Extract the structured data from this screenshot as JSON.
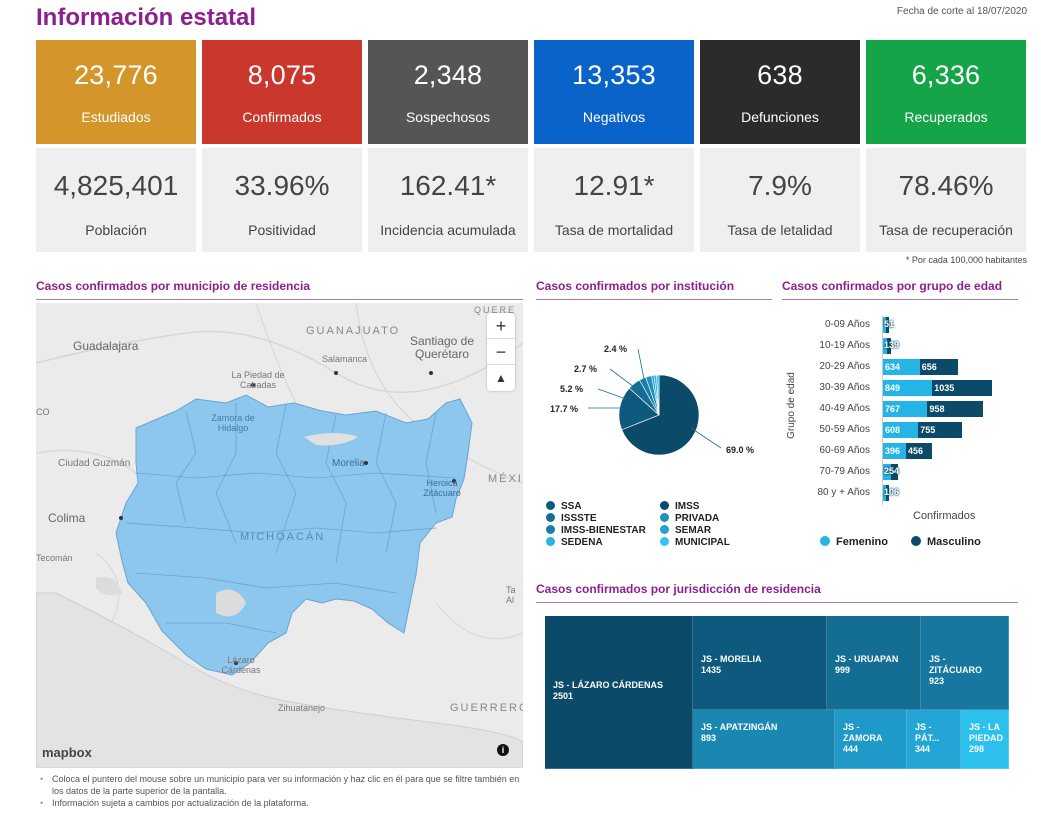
{
  "header": {
    "title": "Información estatal",
    "cutoff": "Fecha de corte al 18/07/2020"
  },
  "cards": [
    {
      "value": "23,776",
      "label": "Estudiados",
      "color": "#d4962a",
      "sub_value": "4,825,401",
      "sub_label": "Población"
    },
    {
      "value": "8,075",
      "label": "Confirmados",
      "color": "#c9372d",
      "sub_value": "33.96%",
      "sub_label": "Positividad"
    },
    {
      "value": "2,348",
      "label": "Sospechosos",
      "color": "#555555",
      "sub_value": "162.41*",
      "sub_label": "Incidencia acumulada"
    },
    {
      "value": "13,353",
      "label": "Negativos",
      "color": "#0a63c9",
      "sub_value": "12.91*",
      "sub_label": "Tasa de mortalidad"
    },
    {
      "value": "638",
      "label": "Defunciones",
      "color": "#2b2b2b",
      "sub_value": "7.9%",
      "sub_label": "Tasa de letalidad"
    },
    {
      "value": "6,336",
      "label": "Recuperados",
      "color": "#15a548",
      "sub_value": "78.46%",
      "sub_label": "Tasa de recuperación"
    }
  ],
  "footnote": "* Por cada 100,000 habitantes",
  "map_section": {
    "title": "Casos confirmados por municipio de residencia",
    "labels": {
      "guanajuato": "GUANAJUATO",
      "guadalajara": "Guadalajara",
      "salamanca": "Salamanca",
      "queretaro": "Santiago de Querétaro",
      "piedad": "La Piedad de Cabadas",
      "zamora": "Zamora de Hidalgo",
      "guzman": "Ciudad Guzmán",
      "morelia": "Morelia",
      "zitacuaro": "Heroica Zitácuaro",
      "colima": "Colima",
      "michoacan": "MICHOACÁN",
      "tecoman": "Tecomán",
      "lazaro": "Lázaro Cárdenas",
      "zihuatanejo": "Zihuatanejo",
      "guerrero": "GUERRERO",
      "mexico": "MÉXIC",
      "queretaro_state": "QUERE",
      "co": "CO",
      "ta": "Ta Al"
    },
    "zoom_in": "+",
    "zoom_out": "−",
    "compass": "▲",
    "mapbox": "mapbox",
    "info": "i"
  },
  "notes": [
    "Coloca el puntero del mouse sobre un municipio para ver su información y haz clic en él para que se filtre también en los datos de la parte superior de la pantalla.",
    "Información sujeta a cambios por actualización de la plataforma."
  ],
  "chart_data": [
    {
      "type": "pie",
      "title": "Casos confirmados por institución",
      "slices": [
        {
          "label": "IMSS",
          "value": 69.0,
          "color": "#0c4a6a"
        },
        {
          "label": "SSA",
          "value": 17.7,
          "color": "#0e5a7e"
        },
        {
          "label": "ISSSTE",
          "value": 5.2,
          "color": "#146d93"
        },
        {
          "label": "IMSS-BIENESTAR",
          "value": 2.7,
          "color": "#1a7fa8"
        },
        {
          "label": "PRIVADA",
          "value": 2.4,
          "color": "#1f91bc"
        },
        {
          "label": "SEMAR",
          "value": 1.0,
          "color": "#23a3d0"
        },
        {
          "label": "SEDENA",
          "value": 1.0,
          "color": "#29b2e0"
        },
        {
          "label": "MUNICIPAL",
          "value": 1.0,
          "color": "#31c3ef"
        }
      ],
      "shown_labels": [
        "69.0 %",
        "17.7 %",
        "5.2 %",
        "2.7 %",
        "2.4 %"
      ],
      "legend": [
        {
          "label": "SSA",
          "color": "#0e5a7e"
        },
        {
          "label": "IMSS",
          "color": "#0c4a6a"
        },
        {
          "label": "ISSSTE",
          "color": "#146d93"
        },
        {
          "label": "PRIVADA",
          "color": "#1f91bc"
        },
        {
          "label": "IMSS-BIENESTAR",
          "color": "#1a7fa8"
        },
        {
          "label": "SEMAR",
          "color": "#23a3d0"
        },
        {
          "label": "SEDENA",
          "color": "#29b2e0"
        },
        {
          "label": "MUNICIPAL",
          "color": "#31c3ef"
        }
      ]
    },
    {
      "type": "bar",
      "title": "Casos confirmados por grupo de edad",
      "categories": [
        "0-09 Años",
        "10-19 Años",
        "20-29 Años",
        "30-39 Años",
        "40-49 Años",
        "50-59 Años",
        "60-69 Años",
        "70-79 Años",
        "80 y + Años"
      ],
      "series": [
        {
          "name": "Femenino",
          "color": "#24b5e6",
          "values": [
            25,
            70,
            634,
            849,
            767,
            608,
            396,
            130,
            55
          ]
        },
        {
          "name": "Masculino",
          "color": "#0c4a6a",
          "values": [
            26,
            69,
            656,
            1035,
            958,
            755,
            456,
            124,
            51
          ]
        }
      ],
      "bar_labels": [
        "51",
        "139",
        "",
        "",
        "",
        "",
        "",
        "254",
        "106"
      ],
      "xlabel": "Confirmados",
      "ylabel": "Grupo de edad"
    },
    {
      "type": "treemap",
      "title": "Casos confirmados por jurisdicción de residencia",
      "items": [
        {
          "label": "JS - LÁZARO CÁRDENAS",
          "value": 2501,
          "color": "#0c4a6a"
        },
        {
          "label": "JS - MORELIA",
          "value": 1435,
          "color": "#0e5a7e"
        },
        {
          "label": "JS - URUAPAN",
          "value": 999,
          "color": "#146d93"
        },
        {
          "label": "JS - ZITÁCUARO",
          "value": 923,
          "color": "#1777a0"
        },
        {
          "label": "JS - APATZINGÁN",
          "value": 893,
          "color": "#1a87b3"
        },
        {
          "label": "JS - ZAMORA",
          "value": 444,
          "color": "#1f99c8"
        },
        {
          "label": "JS - PÁT...",
          "value": 344,
          "color": "#23a6d6"
        },
        {
          "label": "JS - LA PIEDAD",
          "value": 298,
          "color": "#2bc0ee"
        }
      ]
    }
  ]
}
